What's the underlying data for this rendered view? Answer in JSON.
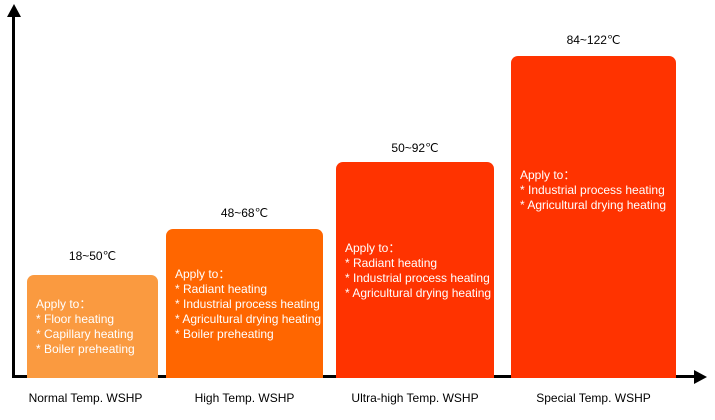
{
  "chart_data": {
    "type": "bar",
    "title": "",
    "unit": "℃",
    "categories": [
      "Normal Temp. WSHP",
      "High Temp. WSHP",
      "Ultra-high Temp. WSHP",
      "Special Temp. WSHP"
    ],
    "axis_color": "#000000",
    "bars": [
      {
        "category": "Normal Temp. WSHP",
        "temp_range": "18~50℃",
        "temp_min_c": 18,
        "temp_max_c": 50,
        "color": "#FA9A40",
        "apply_heading": "Apply to：",
        "applications": [
          "* Floor heating",
          "* Capillary heating",
          "* Boiler preheating"
        ]
      },
      {
        "category": "High Temp. WSHP",
        "temp_range": "48~68℃",
        "temp_min_c": 48,
        "temp_max_c": 68,
        "color": "#FF6600",
        "apply_heading": "Apply to：",
        "applications": [
          "* Radiant heating",
          "* Industrial process heating",
          "* Agricultural drying heating",
          "* Boiler preheating"
        ]
      },
      {
        "category": "Ultra-high Temp. WSHP",
        "temp_range": "50~92℃",
        "temp_min_c": 50,
        "temp_max_c": 92,
        "color": "#FF3300",
        "apply_heading": "Apply to：",
        "applications": [
          "* Radiant heating",
          "* Industrial process heating",
          "* Agricultural drying heating"
        ]
      },
      {
        "category": "Special Temp. WSHP",
        "temp_range": "84~122℃",
        "temp_min_c": 84,
        "temp_max_c": 122,
        "color": "#FF3300",
        "apply_heading": "Apply to：",
        "applications": [
          "* Industrial process heating",
          "* Agricultural drying heating"
        ]
      }
    ]
  }
}
